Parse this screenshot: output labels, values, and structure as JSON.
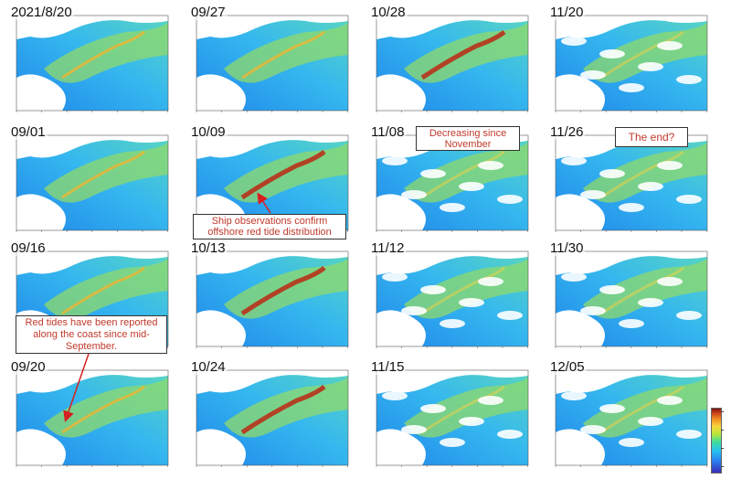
{
  "panels": [
    {
      "id": "p1",
      "date": "2021/8/20",
      "bloom": "medium"
    },
    {
      "id": "p2",
      "date": "09/27",
      "bloom": "medium"
    },
    {
      "id": "p3",
      "date": "10/28",
      "bloom": "high"
    },
    {
      "id": "p4",
      "date": "11/20",
      "bloom": "low"
    },
    {
      "id": "p5",
      "date": "09/01",
      "bloom": "medium"
    },
    {
      "id": "p6",
      "date": "10/09",
      "bloom": "high"
    },
    {
      "id": "p7",
      "date": "11/08",
      "bloom": "low"
    },
    {
      "id": "p8",
      "date": "11/26",
      "bloom": "low"
    },
    {
      "id": "p9",
      "date": "09/16",
      "bloom": "medium"
    },
    {
      "id": "p10",
      "date": "10/13",
      "bloom": "high"
    },
    {
      "id": "p11",
      "date": "11/12",
      "bloom": "low"
    },
    {
      "id": "p12",
      "date": "11/30",
      "bloom": "low"
    },
    {
      "id": "p13",
      "date": "09/20",
      "bloom": "medium"
    },
    {
      "id": "p14",
      "date": "10/24",
      "bloom": "high"
    },
    {
      "id": "p15",
      "date": "11/15",
      "bloom": "low"
    },
    {
      "id": "p16",
      "date": "12/05",
      "bloom": "low"
    }
  ],
  "annotations": {
    "ship_obs": "Ship observations confirm offshore red tide distribution",
    "decreasing": "Decreasing since November",
    "the_end": "The end?",
    "red_tides_coast": "Red tides have been reported along the coast since mid-September."
  },
  "colors": {
    "annotation_text": "#c0392b",
    "arrow": "#d62020",
    "ocean_low": "#2a9df4",
    "ocean_mid": "#4fd0c8",
    "bloom_high": "#b8321a"
  }
}
